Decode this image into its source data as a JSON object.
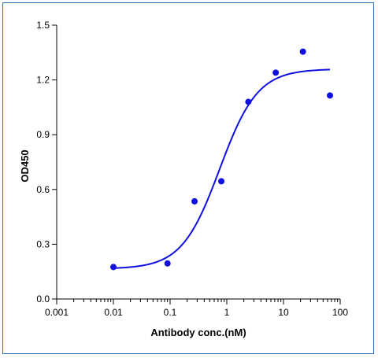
{
  "chart_data": {
    "type": "scatter",
    "title": "",
    "xlabel": "Antibody conc.(nM)",
    "ylabel": "OD450",
    "xscale": "log",
    "xlim": [
      0.001,
      100
    ],
    "ylim": [
      0.0,
      1.5
    ],
    "xticks": [
      0.001,
      0.01,
      0.1,
      1,
      10,
      100
    ],
    "xtick_labels": [
      "0.001",
      "0.01",
      "0.1",
      "1",
      "10",
      "100"
    ],
    "yticks": [
      0.0,
      0.3,
      0.6,
      0.9,
      1.2,
      1.5
    ],
    "ytick_labels": [
      "0.0",
      "0.3",
      "0.6",
      "0.9",
      "1.2",
      "1.5"
    ],
    "grid": false,
    "series": [
      {
        "points": [
          {
            "x": 0.01,
            "y": 0.175
          },
          {
            "x": 0.09,
            "y": 0.195
          },
          {
            "x": 0.27,
            "y": 0.535
          },
          {
            "x": 0.8,
            "y": 0.645
          },
          {
            "x": 2.4,
            "y": 1.08
          },
          {
            "x": 7.3,
            "y": 1.24
          },
          {
            "x": 22,
            "y": 1.355
          },
          {
            "x": 66,
            "y": 1.115
          }
        ]
      }
    ],
    "fit_curve": {
      "type": "4PL",
      "bottom": 0.165,
      "top": 1.26,
      "ec50": 0.75,
      "hill": 1.3,
      "x_range": [
        0.01,
        66
      ]
    },
    "colors": {
      "series": "#1010e0",
      "frame": "#2e6fb4",
      "axis": "#000000"
    }
  }
}
